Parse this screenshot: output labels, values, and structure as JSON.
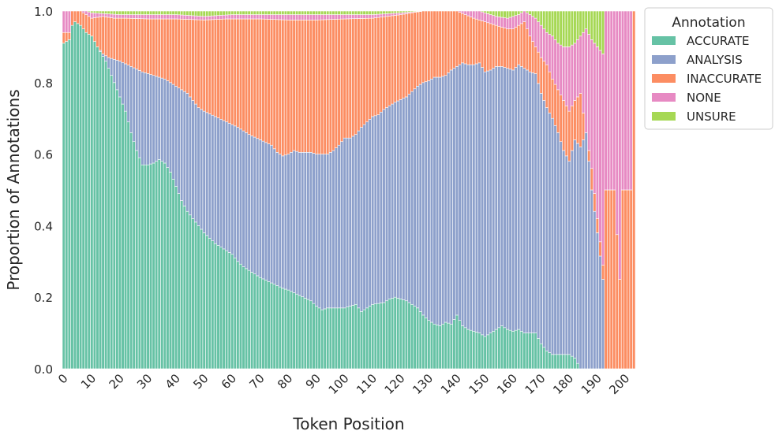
{
  "chart_data": {
    "type": "bar",
    "stacked": true,
    "normalized": true,
    "title": "",
    "xlabel": "Token Position",
    "ylabel": "Proportion of Annotations",
    "xlim": [
      0,
      204
    ],
    "ylim": [
      0,
      1.0
    ],
    "x_ticks": [
      0,
      10,
      20,
      30,
      40,
      50,
      60,
      70,
      80,
      90,
      100,
      110,
      120,
      130,
      140,
      150,
      160,
      170,
      180,
      190,
      200
    ],
    "y_ticks": [
      0.0,
      0.2,
      0.4,
      0.6,
      0.8,
      1.0
    ],
    "y_tick_labels": [
      "0.0",
      "0.2",
      "0.4",
      "0.6",
      "0.8",
      "1.0"
    ],
    "grid": false,
    "legend": {
      "title": "Annotation",
      "position": "upper right, outside plot",
      "entries": [
        "ACCURATE",
        "ANALYSIS",
        "INACCURATE",
        "NONE",
        "UNSURE"
      ]
    },
    "colors": {
      "ACCURATE": "#66c2a5",
      "ANALYSIS": "#8da0cb",
      "INACCURATE": "#fc8d62",
      "NONE": "#e78ac3",
      "UNSURE": "#a6d854",
      "bar_edge": "#ffffff"
    },
    "series_profiles": {
      "note_units": "cumulative proportion at selected token positions; intermediate positions interpolated linearly",
      "accurate_top": [
        [
          0,
          0.91
        ],
        [
          2,
          0.92
        ],
        [
          3,
          0.96
        ],
        [
          4,
          0.97
        ],
        [
          6,
          0.96
        ],
        [
          8,
          0.94
        ],
        [
          10,
          0.93
        ],
        [
          12,
          0.9
        ],
        [
          15,
          0.86
        ],
        [
          18,
          0.8
        ],
        [
          20,
          0.76
        ],
        [
          22,
          0.72
        ],
        [
          24,
          0.66
        ],
        [
          26,
          0.61
        ],
        [
          28,
          0.57
        ],
        [
          30,
          0.57
        ],
        [
          32,
          0.575
        ],
        [
          34,
          0.585
        ],
        [
          36,
          0.575
        ],
        [
          38,
          0.55
        ],
        [
          40,
          0.51
        ],
        [
          42,
          0.47
        ],
        [
          44,
          0.44
        ],
        [
          46,
          0.42
        ],
        [
          50,
          0.38
        ],
        [
          54,
          0.35
        ],
        [
          58,
          0.33
        ],
        [
          60,
          0.32
        ],
        [
          62,
          0.3
        ],
        [
          64,
          0.285
        ],
        [
          66,
          0.275
        ],
        [
          70,
          0.255
        ],
        [
          74,
          0.24
        ],
        [
          78,
          0.225
        ],
        [
          80,
          0.22
        ],
        [
          84,
          0.205
        ],
        [
          88,
          0.19
        ],
        [
          90,
          0.175
        ],
        [
          92,
          0.165
        ],
        [
          94,
          0.17
        ],
        [
          98,
          0.17
        ],
        [
          100,
          0.17
        ],
        [
          102,
          0.175
        ],
        [
          104,
          0.18
        ],
        [
          106,
          0.16
        ],
        [
          110,
          0.18
        ],
        [
          114,
          0.185
        ],
        [
          116,
          0.195
        ],
        [
          118,
          0.2
        ],
        [
          122,
          0.19
        ],
        [
          124,
          0.18
        ],
        [
          126,
          0.17
        ],
        [
          128,
          0.15
        ],
        [
          130,
          0.135
        ],
        [
          132,
          0.125
        ],
        [
          134,
          0.12
        ],
        [
          136,
          0.13
        ],
        [
          138,
          0.125
        ],
        [
          140,
          0.15
        ],
        [
          142,
          0.12
        ],
        [
          144,
          0.11
        ],
        [
          146,
          0.105
        ],
        [
          148,
          0.1
        ],
        [
          150,
          0.09
        ],
        [
          152,
          0.1
        ],
        [
          154,
          0.11
        ],
        [
          156,
          0.12
        ],
        [
          158,
          0.11
        ],
        [
          160,
          0.105
        ],
        [
          162,
          0.11
        ],
        [
          164,
          0.1
        ],
        [
          166,
          0.1
        ],
        [
          168,
          0.1
        ],
        [
          170,
          0.07
        ],
        [
          172,
          0.05
        ],
        [
          174,
          0.04
        ],
        [
          176,
          0.04
        ],
        [
          178,
          0.04
        ],
        [
          180,
          0.04
        ],
        [
          182,
          0.03
        ],
        [
          184,
          0.0
        ],
        [
          204,
          0.0
        ]
      ],
      "analysis_top": [
        [
          0,
          0.91
        ],
        [
          2,
          0.92
        ],
        [
          3,
          0.96
        ],
        [
          4,
          0.97
        ],
        [
          6,
          0.96
        ],
        [
          8,
          0.94
        ],
        [
          10,
          0.92
        ],
        [
          12,
          0.9
        ],
        [
          14,
          0.88
        ],
        [
          16,
          0.87
        ],
        [
          20,
          0.86
        ],
        [
          24,
          0.845
        ],
        [
          28,
          0.83
        ],
        [
          32,
          0.82
        ],
        [
          36,
          0.81
        ],
        [
          40,
          0.79
        ],
        [
          44,
          0.77
        ],
        [
          46,
          0.75
        ],
        [
          48,
          0.73
        ],
        [
          50,
          0.72
        ],
        [
          54,
          0.705
        ],
        [
          58,
          0.69
        ],
        [
          62,
          0.675
        ],
        [
          66,
          0.655
        ],
        [
          70,
          0.64
        ],
        [
          74,
          0.625
        ],
        [
          76,
          0.605
        ],
        [
          78,
          0.595
        ],
        [
          80,
          0.6
        ],
        [
          82,
          0.61
        ],
        [
          84,
          0.605
        ],
        [
          88,
          0.605
        ],
        [
          90,
          0.6
        ],
        [
          94,
          0.6
        ],
        [
          96,
          0.61
        ],
        [
          98,
          0.625
        ],
        [
          100,
          0.645
        ],
        [
          102,
          0.645
        ],
        [
          104,
          0.655
        ],
        [
          106,
          0.675
        ],
        [
          108,
          0.69
        ],
        [
          110,
          0.705
        ],
        [
          112,
          0.71
        ],
        [
          114,
          0.725
        ],
        [
          116,
          0.735
        ],
        [
          118,
          0.745
        ],
        [
          122,
          0.76
        ],
        [
          124,
          0.775
        ],
        [
          126,
          0.79
        ],
        [
          128,
          0.8
        ],
        [
          130,
          0.805
        ],
        [
          132,
          0.815
        ],
        [
          134,
          0.815
        ],
        [
          136,
          0.82
        ],
        [
          138,
          0.835
        ],
        [
          140,
          0.845
        ],
        [
          142,
          0.855
        ],
        [
          144,
          0.85
        ],
        [
          146,
          0.85
        ],
        [
          148,
          0.855
        ],
        [
          150,
          0.83
        ],
        [
          152,
          0.835
        ],
        [
          154,
          0.845
        ],
        [
          156,
          0.845
        ],
        [
          158,
          0.84
        ],
        [
          160,
          0.835
        ],
        [
          162,
          0.85
        ],
        [
          164,
          0.84
        ],
        [
          166,
          0.83
        ],
        [
          168,
          0.825
        ],
        [
          170,
          0.77
        ],
        [
          172,
          0.73
        ],
        [
          174,
          0.7
        ],
        [
          176,
          0.66
        ],
        [
          178,
          0.61
        ],
        [
          180,
          0.58
        ],
        [
          182,
          0.64
        ],
        [
          184,
          0.62
        ],
        [
          186,
          0.66
        ],
        [
          188,
          0.5
        ],
        [
          190,
          0.38
        ],
        [
          192,
          0.25
        ],
        [
          193,
          0.0
        ],
        [
          204,
          0.0
        ]
      ],
      "inaccurate_top": [
        [
          0,
          0.94
        ],
        [
          2,
          0.94
        ],
        [
          3,
          1.0
        ],
        [
          6,
          1.0
        ],
        [
          8,
          0.99
        ],
        [
          10,
          0.98
        ],
        [
          14,
          0.985
        ],
        [
          18,
          0.98
        ],
        [
          22,
          0.98
        ],
        [
          30,
          0.978
        ],
        [
          40,
          0.978
        ],
        [
          50,
          0.975
        ],
        [
          58,
          0.978
        ],
        [
          70,
          0.978
        ],
        [
          80,
          0.975
        ],
        [
          90,
          0.975
        ],
        [
          100,
          0.978
        ],
        [
          110,
          0.98
        ],
        [
          120,
          0.99
        ],
        [
          128,
          1.0
        ],
        [
          140,
          1.0
        ],
        [
          146,
          0.98
        ],
        [
          150,
          0.97
        ],
        [
          154,
          0.96
        ],
        [
          158,
          0.95
        ],
        [
          160,
          0.95
        ],
        [
          162,
          0.96
        ],
        [
          164,
          0.97
        ],
        [
          166,
          0.93
        ],
        [
          168,
          0.9
        ],
        [
          170,
          0.87
        ],
        [
          172,
          0.85
        ],
        [
          174,
          0.81
        ],
        [
          176,
          0.78
        ],
        [
          178,
          0.75
        ],
        [
          180,
          0.72
        ],
        [
          182,
          0.75
        ],
        [
          184,
          0.77
        ],
        [
          186,
          0.66
        ],
        [
          188,
          0.56
        ],
        [
          190,
          0.42
        ],
        [
          192,
          0.29
        ],
        [
          193,
          0.5
        ],
        [
          194,
          0.5
        ],
        [
          196,
          0.5
        ],
        [
          198,
          0.25
        ],
        [
          199,
          0.5
        ],
        [
          202,
          0.5
        ],
        [
          203,
          1.0
        ],
        [
          204,
          1.0
        ]
      ],
      "none_top": [
        [
          0,
          1.0
        ],
        [
          2,
          1.0
        ],
        [
          3,
          1.0
        ],
        [
          8,
          1.0
        ],
        [
          10,
          0.995
        ],
        [
          20,
          0.99
        ],
        [
          30,
          0.99
        ],
        [
          40,
          0.99
        ],
        [
          50,
          0.985
        ],
        [
          60,
          0.99
        ],
        [
          70,
          0.99
        ],
        [
          80,
          0.99
        ],
        [
          90,
          0.99
        ],
        [
          100,
          0.99
        ],
        [
          110,
          0.99
        ],
        [
          120,
          0.995
        ],
        [
          128,
          1.0
        ],
        [
          148,
          1.0
        ],
        [
          150,
          0.995
        ],
        [
          154,
          0.985
        ],
        [
          158,
          0.98
        ],
        [
          160,
          0.985
        ],
        [
          162,
          0.99
        ],
        [
          164,
          1.0
        ],
        [
          168,
          0.98
        ],
        [
          170,
          0.96
        ],
        [
          172,
          0.94
        ],
        [
          174,
          0.93
        ],
        [
          176,
          0.91
        ],
        [
          178,
          0.9
        ],
        [
          180,
          0.9
        ],
        [
          182,
          0.91
        ],
        [
          184,
          0.93
        ],
        [
          186,
          0.95
        ],
        [
          188,
          0.92
        ],
        [
          190,
          0.9
        ],
        [
          192,
          0.88
        ],
        [
          193,
          1.0
        ],
        [
          204,
          1.0
        ]
      ],
      "unsure_top": [
        [
          0,
          1.0
        ],
        [
          204,
          1.0
        ]
      ]
    }
  }
}
